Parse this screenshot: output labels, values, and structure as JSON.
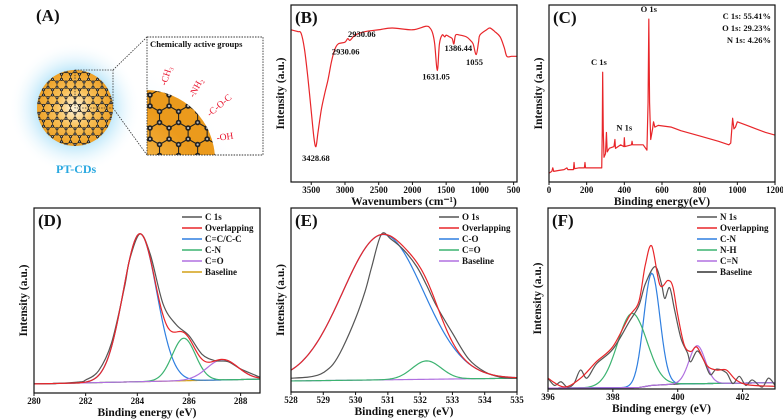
{
  "panel_a": {
    "label": "(A)",
    "box_title": "Chemically active groups",
    "groups": [
      "-CH₃",
      "-NH₂",
      "-C-O-C",
      "-OH"
    ],
    "name": "PT-CDs",
    "colors": {
      "name": "#29a8e0",
      "groups": "#e8102a",
      "core": "#f5a623"
    }
  },
  "chart_data": [
    {
      "label": "(B)",
      "type": "line",
      "xlabel": "Wavenumbers (cm⁻¹)",
      "ylabel": "Intensity (a.u.)",
      "xlim": [
        3800,
        450
      ],
      "ylim": [
        0,
        100
      ],
      "reversed_x": true,
      "xticks": [
        3500,
        3000,
        2500,
        2000,
        1500,
        1000,
        500
      ],
      "series": [
        {
          "name": "FTIR",
          "color": "#e8262a",
          "smooth": true,
          "points": [
            [
              3800,
              86
            ],
            [
              3700,
              85
            ],
            [
              3650,
              84
            ],
            [
              3600,
              75
            ],
            [
              3550,
              59
            ],
            [
              3500,
              40
            ],
            [
              3460,
              25
            ],
            [
              3430,
              20
            ],
            [
              3400,
              28
            ],
            [
              3350,
              41
            ],
            [
              3300,
              50
            ],
            [
              3250,
              58
            ],
            [
              3200,
              68
            ],
            [
              3150,
              75
            ],
            [
              3100,
              78
            ],
            [
              3000,
              79
            ],
            [
              2960,
              81
            ],
            [
              2930,
              80
            ],
            [
              2900,
              81
            ],
            [
              2850,
              83
            ],
            [
              2700,
              85
            ],
            [
              2500,
              86
            ],
            [
              2300,
              87
            ],
            [
              2000,
              86
            ],
            [
              1800,
              88
            ],
            [
              1740,
              87
            ],
            [
              1700,
              84
            ],
            [
              1670,
              78
            ],
            [
              1631,
              63
            ],
            [
              1600,
              78
            ],
            [
              1560,
              83
            ],
            [
              1520,
              82
            ],
            [
              1500,
              83
            ],
            [
              1450,
              82
            ],
            [
              1410,
              81
            ],
            [
              1386,
              78
            ],
            [
              1360,
              83
            ],
            [
              1300,
              83
            ],
            [
              1200,
              82
            ],
            [
              1140,
              80
            ],
            [
              1100,
              78
            ],
            [
              1055,
              72
            ],
            [
              1020,
              79
            ],
            [
              1000,
              83
            ],
            [
              900,
              86
            ],
            [
              850,
              87
            ],
            [
              780,
              85
            ],
            [
              700,
              82
            ],
            [
              640,
              76
            ],
            [
              600,
              71
            ],
            [
              530,
              71
            ],
            [
              450,
              71
            ]
          ]
        }
      ],
      "annotations": [
        {
          "text": "3428.68",
          "x": 3430,
          "y": 12
        },
        {
          "text": "2930.06",
          "x": 2990,
          "y": 72
        },
        {
          "text": "2930.06",
          "x": 2750,
          "y": 82
        },
        {
          "text": "1631.05",
          "x": 1650,
          "y": 58
        },
        {
          "text": "1386.44",
          "x": 1320,
          "y": 74
        },
        {
          "text": "1055",
          "x": 1080,
          "y": 66
        }
      ]
    },
    {
      "label": "(C)",
      "type": "line",
      "xlabel": "Binding energy(eV)",
      "ylabel": "Intensity (a.u.)",
      "xlim": [
        0,
        1200
      ],
      "ylim": [
        0,
        100
      ],
      "xticks": [
        0,
        200,
        400,
        600,
        800,
        1000,
        1200
      ],
      "series": [
        {
          "name": "Survey",
          "color": "#e8262a",
          "smooth": false,
          "points": [
            [
              0,
              5
            ],
            [
              15,
              6
            ],
            [
              20,
              8
            ],
            [
              25,
              6
            ],
            [
              50,
              6.5
            ],
            [
              80,
              7
            ],
            [
              95,
              8
            ],
            [
              100,
              7
            ],
            [
              130,
              7
            ],
            [
              133,
              11
            ],
            [
              136,
              7.5
            ],
            [
              160,
              8
            ],
            [
              188,
              8
            ],
            [
              191,
              11
            ],
            [
              194,
              8
            ],
            [
              230,
              8
            ],
            [
              280,
              8
            ],
            [
              283,
              30
            ],
            [
              285,
              62
            ],
            [
              288,
              30
            ],
            [
              292,
              14
            ],
            [
              300,
              16
            ],
            [
              305,
              28
            ],
            [
              309,
              17
            ],
            [
              320,
              19
            ],
            [
              345,
              20
            ],
            [
              350,
              24
            ],
            [
              353,
              19
            ],
            [
              380,
              21
            ],
            [
              398,
              20
            ],
            [
              400,
              25
            ],
            [
              403,
              20
            ],
            [
              438,
              21
            ],
            [
              441,
              23
            ],
            [
              444,
              21
            ],
            [
              500,
              21
            ],
            [
              520,
              18
            ],
            [
              526,
              45
            ],
            [
              530,
              92
            ],
            [
              534,
              45
            ],
            [
              540,
              24
            ],
            [
              550,
              30
            ],
            [
              555,
              34
            ],
            [
              562,
              31
            ],
            [
              580,
              32
            ],
            [
              650,
              31
            ],
            [
              700,
              29
            ],
            [
              800,
              26
            ],
            [
              900,
              23
            ],
            [
              955,
              21
            ],
            [
              965,
              22
            ],
            [
              975,
              36
            ],
            [
              982,
              30
            ],
            [
              990,
              31
            ],
            [
              1000,
              34
            ],
            [
              1050,
              32
            ],
            [
              1100,
              30
            ],
            [
              1150,
              28
            ],
            [
              1200,
              26.5
            ]
          ]
        }
      ],
      "annotations": [
        {
          "text": "C 1s",
          "x": 265,
          "y": 66
        },
        {
          "text": "N 1s",
          "x": 400,
          "y": 29
        },
        {
          "text": "O 1s",
          "x": 530,
          "y": 96
        }
      ],
      "composition": [
        "C 1s: 55.41%",
        "O 1s: 29.23%",
        "N 1s: 4.26%"
      ]
    },
    {
      "label": "(D)",
      "type": "line",
      "xlabel": "Binding energy (eV)",
      "ylabel": "Intensity (a.u.)",
      "xlim": [
        280,
        288.75
      ],
      "ylim": [
        0,
        100
      ],
      "xticks": [
        280,
        282,
        284,
        286,
        288
      ],
      "baseline": {
        "name": "Baseline",
        "color": "#d4a017",
        "points": [
          [
            280,
            4.9
          ],
          [
            288.75,
            7.5
          ]
        ]
      },
      "measured": {
        "name": "C 1s",
        "color": "#555555",
        "points": [
          [
            280,
            4.9
          ],
          [
            281,
            5.2
          ],
          [
            281.8,
            6
          ],
          [
            282,
            7
          ],
          [
            282.5,
            12
          ],
          [
            283,
            27
          ],
          [
            283.5,
            57
          ],
          [
            283.7,
            72
          ],
          [
            284.1,
            86
          ],
          [
            284.5,
            75
          ],
          [
            285,
            48
          ],
          [
            285.5,
            37
          ],
          [
            286,
            31
          ],
          [
            286.5,
            21
          ],
          [
            287,
            17.5
          ],
          [
            287.5,
            17
          ],
          [
            288,
            13
          ],
          [
            288.5,
            10
          ],
          [
            288.75,
            8.5
          ]
        ]
      },
      "overlapping": {
        "name": "Overlapping",
        "color": "#e8262a"
      },
      "components": [
        {
          "name": "C=C/C-C",
          "color": "#2f7fe0",
          "center": 284.1,
          "amplitude": 80,
          "sigma": 0.65
        },
        {
          "name": "C-N",
          "color": "#3cb371",
          "center": 285.8,
          "amplitude": 23,
          "sigma": 0.45
        },
        {
          "name": "C=O",
          "color": "#b070e0",
          "center": 287.3,
          "amplitude": 11,
          "sigma": 0.6
        }
      ],
      "legend": [
        "C 1s",
        "Overlapping",
        "C=C/C-C",
        "C-N",
        "C=O",
        "Baseline"
      ]
    },
    {
      "label": "(E)",
      "type": "line",
      "xlabel": "Binding energy (eV)",
      "ylabel": "Intensity (a.u.)",
      "xlim": [
        528,
        535
      ],
      "ylim": [
        0,
        100
      ],
      "xticks": [
        528,
        529,
        530,
        531,
        532,
        533,
        534,
        535
      ],
      "baseline": {
        "name": "Baseline",
        "color": "#b070e0",
        "points": [
          [
            528,
            6
          ],
          [
            535,
            7.5
          ]
        ]
      },
      "measured": {
        "name": "O 1s",
        "color": "#555555",
        "points": [
          [
            528,
            7.5
          ],
          [
            528.5,
            8
          ],
          [
            528.8,
            9
          ],
          [
            529,
            10.5
          ],
          [
            529.3,
            15
          ],
          [
            529.6,
            24
          ],
          [
            530,
            40
          ],
          [
            530.3,
            55
          ],
          [
            530.5,
            68
          ],
          [
            530.8,
            85.7
          ],
          [
            531.1,
            83
          ],
          [
            531.5,
            77
          ],
          [
            531.9,
            68
          ],
          [
            532.2,
            58
          ],
          [
            532.5,
            47
          ],
          [
            533,
            32
          ],
          [
            533.5,
            18
          ],
          [
            534,
            11
          ],
          [
            534.5,
            8
          ],
          [
            535,
            7.5
          ]
        ]
      },
      "overlapping": {
        "name": "Overlapping",
        "color": "#e8262a"
      },
      "components": [
        {
          "name": "C-O",
          "color": "#2f7fe0",
          "center": 530.85,
          "amplitude": 79,
          "sigma": 1.25
        },
        {
          "name": "C=O",
          "color": "#3cb371",
          "center": 532.2,
          "amplitude": 10,
          "sigma": 0.45
        }
      ],
      "legend": [
        "O 1s",
        "Overlapping",
        "C-O",
        "C=O",
        "Baseline"
      ]
    },
    {
      "label": "(F)",
      "type": "line",
      "xlabel": "Binding energy (eV)",
      "ylabel": "Intensity (a.u.)",
      "xlim": [
        396,
        403
      ],
      "ylim": [
        0,
        100
      ],
      "xticks": [
        396,
        398,
        400,
        402
      ],
      "baseline": {
        "name": "Baseline",
        "color": "#333333",
        "points": [
          [
            396,
            0.5
          ],
          [
            398.8,
            0.8
          ],
          [
            399.2,
            2
          ],
          [
            400,
            2.8
          ],
          [
            403,
            3.5
          ]
        ]
      },
      "measured": {
        "name": "N 1s",
        "color": "#555555",
        "points": [
          [
            396,
            6
          ],
          [
            396.2,
            2
          ],
          [
            396.4,
            4
          ],
          [
            396.6,
            1
          ],
          [
            396.8,
            3
          ],
          [
            397,
            10.5
          ],
          [
            397.2,
            6
          ],
          [
            397.5,
            14
          ],
          [
            398,
            22
          ],
          [
            398.5,
            37
          ],
          [
            398.8,
            46
          ],
          [
            399,
            58
          ],
          [
            399.3,
            67.6
          ],
          [
            399.5,
            58
          ],
          [
            399.6,
            50
          ],
          [
            399.75,
            56
          ],
          [
            399.9,
            44
          ],
          [
            400.1,
            28
          ],
          [
            400.3,
            20
          ],
          [
            400.4,
            15
          ],
          [
            400.6,
            21
          ],
          [
            400.8,
            16
          ],
          [
            401,
            8
          ],
          [
            401.2,
            11
          ],
          [
            401.5,
            9
          ],
          [
            401.7,
            3
          ],
          [
            401.9,
            7
          ],
          [
            402.1,
            2
          ],
          [
            402.3,
            5
          ],
          [
            402.6,
            1
          ],
          [
            402.8,
            6
          ],
          [
            403,
            2
          ]
        ]
      },
      "overlapping": {
        "name": "Overlapping",
        "color": "#e8262a",
        "points": [
          [
            396,
            5.9
          ],
          [
            396.5,
            1.1
          ],
          [
            397,
            5.9
          ],
          [
            397.5,
            15.2
          ],
          [
            398,
            23.4
          ],
          [
            398.5,
            40
          ],
          [
            398.8,
            48.2
          ],
          [
            399,
            68.5
          ],
          [
            399.2,
            79
          ],
          [
            399.45,
            57.5
          ],
          [
            399.7,
            60
          ],
          [
            399.85,
            56.5
          ],
          [
            400,
            41
          ],
          [
            400.2,
            24.4
          ],
          [
            400.4,
            20.7
          ],
          [
            400.6,
            23
          ],
          [
            400.9,
            13
          ],
          [
            401.2,
            10.5
          ],
          [
            401.5,
            10.5
          ],
          [
            401.8,
            5
          ],
          [
            402.2,
            2.2
          ],
          [
            403,
            1.5
          ]
        ]
      },
      "components": [
        {
          "name": "C-N",
          "color": "#2f7fe0",
          "center": 399.2,
          "amplitude": 62,
          "sigma": 0.25
        },
        {
          "name": "N-H",
          "color": "#3cb371",
          "center": 398.6,
          "amplitude": 41,
          "sigma": 0.45
        },
        {
          "name": "C=N",
          "color": "#b070e0",
          "center": 400.6,
          "amplitude": 21,
          "sigma": 0.25
        }
      ],
      "legend": [
        "N 1s",
        "Overlapping",
        "C-N",
        "N-H",
        "C=N",
        "Baseline"
      ]
    }
  ]
}
